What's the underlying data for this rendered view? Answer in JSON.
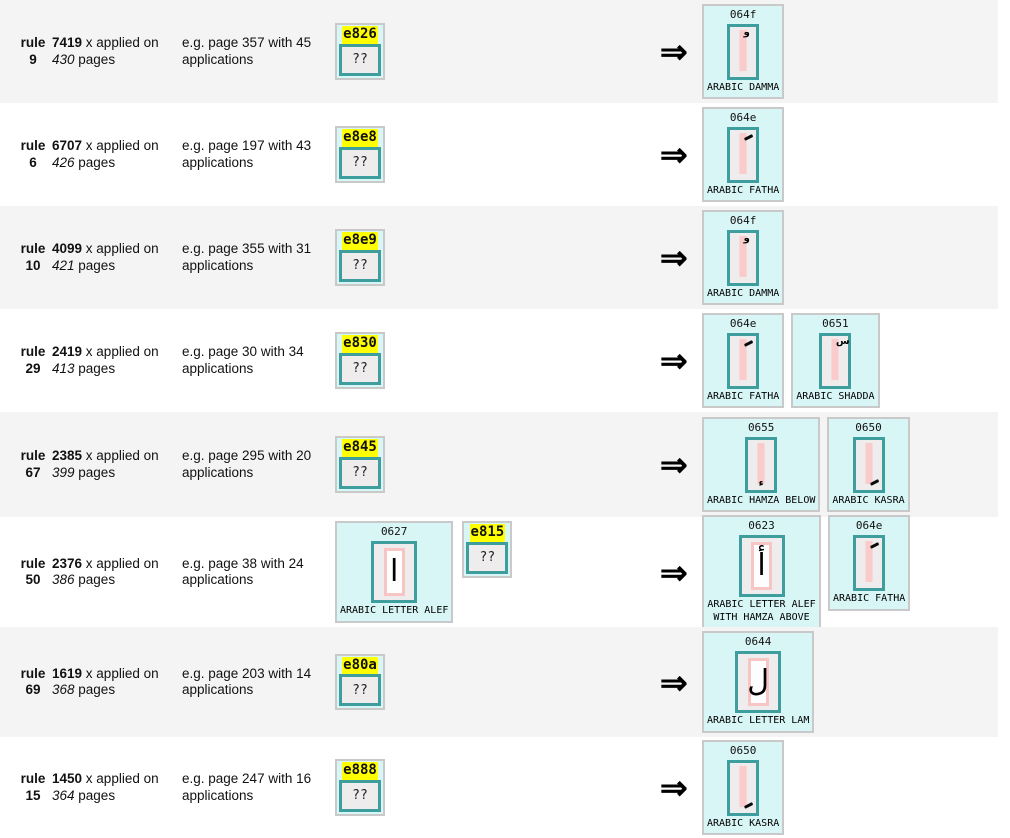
{
  "colors": {
    "stripe_gray": "#f5f4f4",
    "card_cyan": "#d9f6f6",
    "teal_border": "#3e9e9e",
    "pink_bar": "#fbcaca",
    "highlight_yellow": "#ffff00"
  },
  "arrow": "⇒",
  "unknown_placeholder": "??",
  "rows": [
    {
      "rule_word": "rule",
      "rule_num": "9",
      "count": "7419",
      "count_suffix": " x applied on",
      "pages": "430",
      "pages_suffix": " pages",
      "example": "e.g. page 357 with 45 applications",
      "sources": [
        {
          "kind": "unknown",
          "hex": "e826"
        }
      ],
      "targets": [
        {
          "hex": "064f",
          "name": "ARABIC DAMMA",
          "glyph": "و",
          "glyph_kind": "char",
          "pos": "top",
          "letter": false
        }
      ]
    },
    {
      "rule_word": "rule",
      "rule_num": "6",
      "count": "6707",
      "count_suffix": " x applied on",
      "pages": "426",
      "pages_suffix": " pages",
      "example": "e.g. page 197 with 43 applications",
      "sources": [
        {
          "kind": "unknown",
          "hex": "e8e8"
        }
      ],
      "targets": [
        {
          "hex": "064e",
          "name": "ARABIC FATHA",
          "glyph_kind": "stroke",
          "pos": "top",
          "letter": false
        }
      ]
    },
    {
      "rule_word": "rule",
      "rule_num": "10",
      "count": "4099",
      "count_suffix": " x applied on",
      "pages": "421",
      "pages_suffix": " pages",
      "example": "e.g. page 355 with 31 applications",
      "sources": [
        {
          "kind": "unknown",
          "hex": "e8e9"
        }
      ],
      "targets": [
        {
          "hex": "064f",
          "name": "ARABIC DAMMA",
          "glyph": "و",
          "glyph_kind": "char",
          "pos": "top",
          "letter": false
        }
      ]
    },
    {
      "rule_word": "rule",
      "rule_num": "29",
      "count": "2419",
      "count_suffix": " x applied on",
      "pages": "413",
      "pages_suffix": " pages",
      "example": "e.g. page 30 with 34 applications",
      "sources": [
        {
          "kind": "unknown",
          "hex": "e830"
        }
      ],
      "targets": [
        {
          "hex": "064e",
          "name": "ARABIC FATHA",
          "glyph_kind": "stroke",
          "pos": "top",
          "letter": false
        },
        {
          "hex": "0651",
          "name": "ARABIC SHADDA",
          "glyph": "س",
          "glyph_kind": "char",
          "pos": "top",
          "letter": false
        }
      ]
    },
    {
      "rule_word": "rule",
      "rule_num": "67",
      "count": "2385",
      "count_suffix": " x applied on",
      "pages": "399",
      "pages_suffix": " pages",
      "example": "e.g. page 295 with 20 applications",
      "sources": [
        {
          "kind": "unknown",
          "hex": "e845"
        }
      ],
      "targets": [
        {
          "hex": "0655",
          "name": "ARABIC HAMZA BELOW",
          "glyph": "ء",
          "glyph_kind": "char",
          "pos": "bottom",
          "letter": false
        },
        {
          "hex": "0650",
          "name": "ARABIC KASRA",
          "glyph_kind": "stroke",
          "pos": "bottom",
          "letter": false
        }
      ]
    },
    {
      "rule_word": "rule",
      "rule_num": "50",
      "count": "2376",
      "count_suffix": " x applied on",
      "pages": "386",
      "pages_suffix": " pages",
      "example": "e.g. page 38 with 24 applications",
      "sources": [
        {
          "kind": "known",
          "hex": "0627",
          "name": "ARABIC LETTER ALEF",
          "glyph": "ا",
          "glyph_kind": "char",
          "pos": "center",
          "letter": true
        },
        {
          "kind": "unknown",
          "hex": "e815"
        }
      ],
      "targets": [
        {
          "hex": "0623",
          "name": "ARABIC LETTER ALEF WITH HAMZA ABOVE",
          "glyph": "أ",
          "glyph_kind": "char",
          "pos": "center",
          "letter": true,
          "wrap": true
        },
        {
          "hex": "064e",
          "name": "ARABIC FATHA",
          "glyph_kind": "stroke",
          "pos": "top",
          "letter": false
        }
      ]
    },
    {
      "rule_word": "rule",
      "rule_num": "69",
      "count": "1619",
      "count_suffix": " x applied on",
      "pages": "368",
      "pages_suffix": " pages",
      "example": "e.g. page 203 with 14 applications",
      "sources": [
        {
          "kind": "unknown",
          "hex": "e80a"
        }
      ],
      "targets": [
        {
          "hex": "0644",
          "name": "ARABIC LETTER LAM",
          "glyph": "ل",
          "glyph_kind": "char",
          "pos": "center",
          "letter": true
        }
      ]
    },
    {
      "rule_word": "rule",
      "rule_num": "15",
      "count": "1450",
      "count_suffix": " x applied on",
      "pages": "364",
      "pages_suffix": " pages",
      "example": "e.g. page 247 with 16 applications",
      "sources": [
        {
          "kind": "unknown",
          "hex": "e888"
        }
      ],
      "targets": [
        {
          "hex": "0650",
          "name": "ARABIC KASRA",
          "glyph_kind": "stroke",
          "pos": "bottom",
          "letter": false
        }
      ]
    }
  ]
}
